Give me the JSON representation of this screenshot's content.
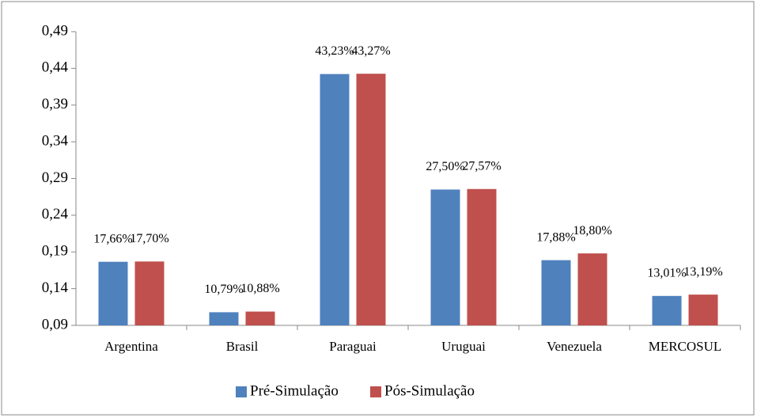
{
  "chart_data": {
    "type": "bar",
    "categories": [
      "Argentina",
      "Brasil",
      "Paraguai",
      "Uruguai",
      "Venezuela",
      "MERCOSUL"
    ],
    "series": [
      {
        "name": "Pré-Simulação",
        "color": "#4f81bd",
        "values": [
          0.1766,
          0.1079,
          0.4323,
          0.275,
          0.1788,
          0.1301
        ],
        "value_labels": [
          "17,66%",
          "10,79%",
          "43,23%",
          "27,50%",
          "17,88%",
          "13,01%"
        ]
      },
      {
        "name": "Pós-Simulação",
        "color": "#c0504d",
        "values": [
          0.177,
          0.1088,
          0.4327,
          0.2757,
          0.188,
          0.1319
        ],
        "value_labels": [
          "17,70%",
          "10,88%",
          "43,27%",
          "27,57%",
          "18,80%",
          "13,19%"
        ]
      }
    ],
    "ylim": [
      0.09,
      0.49
    ],
    "yticks": [
      {
        "value": 0.09,
        "label": "0,09"
      },
      {
        "value": 0.14,
        "label": "0,14"
      },
      {
        "value": 0.19,
        "label": "0,19"
      },
      {
        "value": 0.24,
        "label": "0,24"
      },
      {
        "value": 0.29,
        "label": "0,29"
      },
      {
        "value": 0.34,
        "label": "0,34"
      },
      {
        "value": 0.39,
        "label": "0,39"
      },
      {
        "value": 0.44,
        "label": "0,44"
      },
      {
        "value": 0.49,
        "label": "0,49"
      }
    ],
    "grid": false,
    "legend": "bottom"
  }
}
